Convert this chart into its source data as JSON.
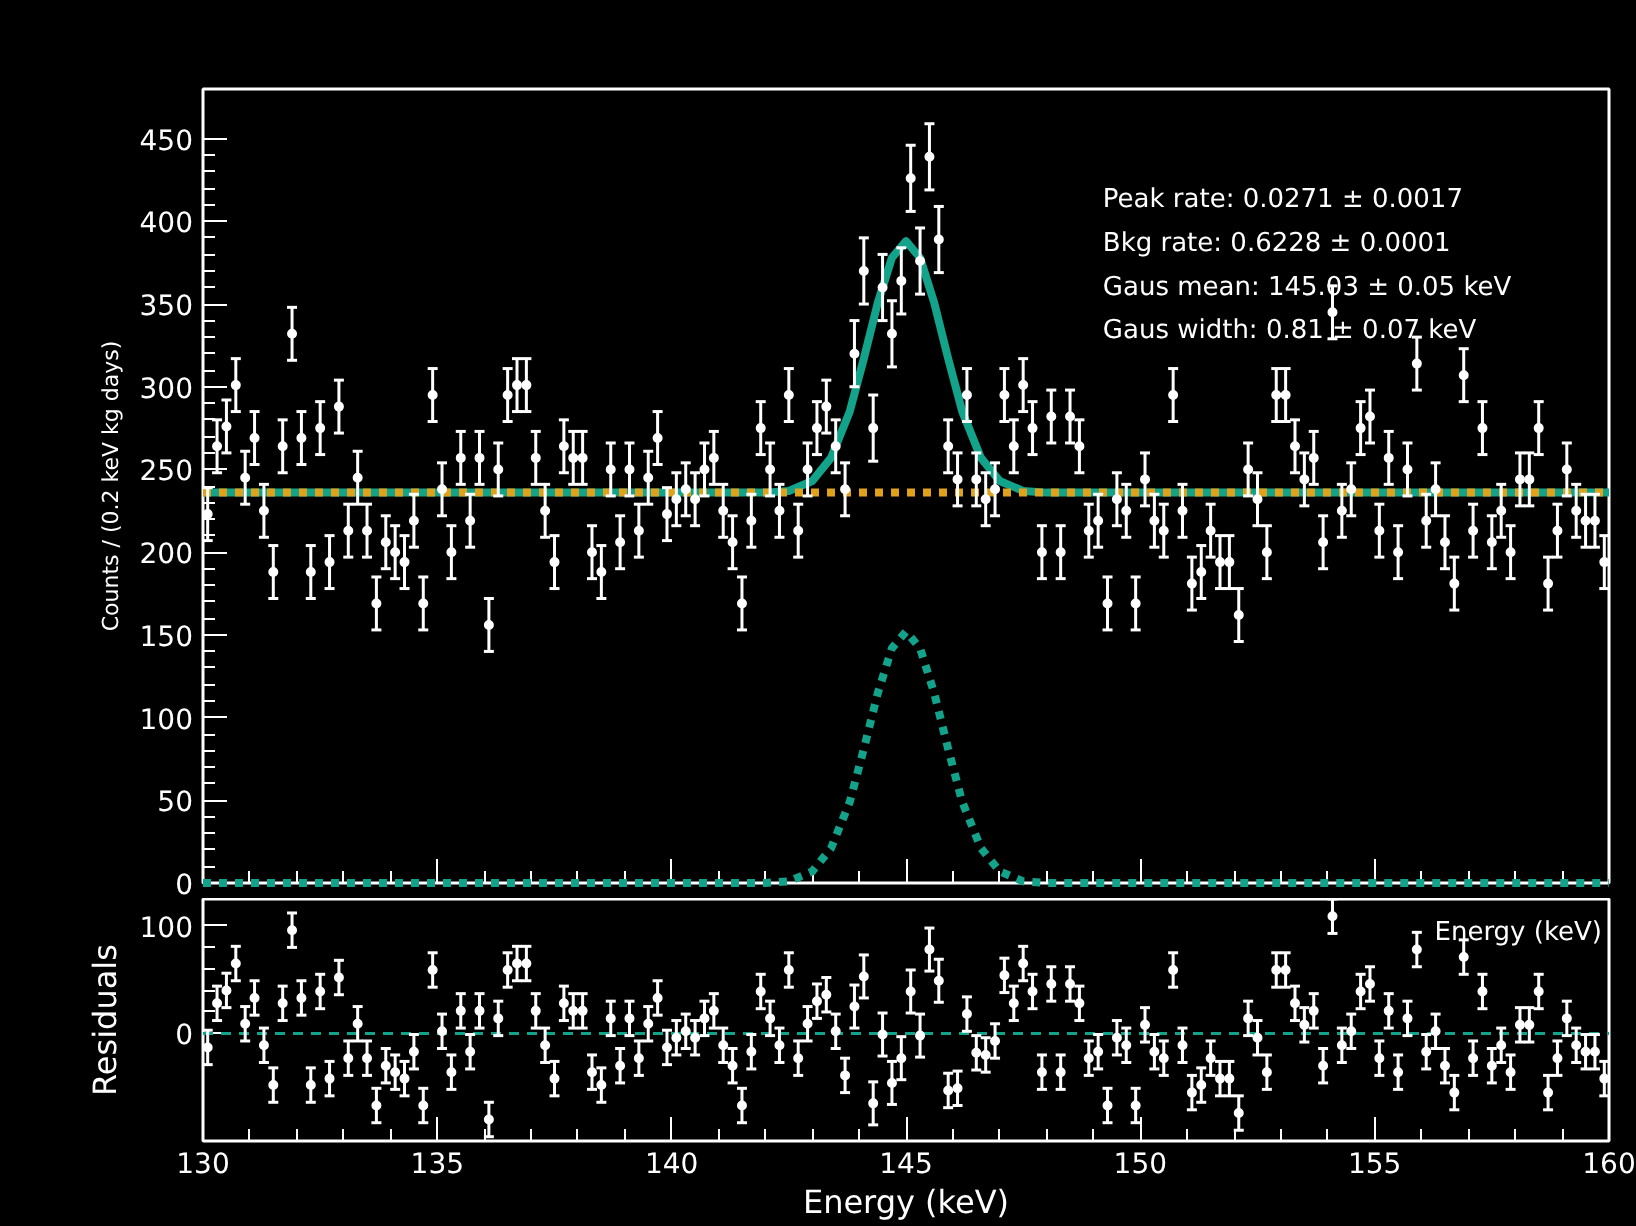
{
  "chart_data": [
    {
      "type": "scatter",
      "ylabel": "Counts / (0.2 keV kg days)",
      "xlim": [
        130,
        160
      ],
      "xticks": [
        130,
        135,
        140,
        145,
        150,
        155,
        160
      ],
      "ylim": [
        0,
        480
      ],
      "yticks": [
        0,
        50,
        100,
        150,
        200,
        250,
        300,
        350,
        400,
        450
      ],
      "tick_labels": "y",
      "annotations": [
        "Peak rate: 0.0271 ± 0.0017",
        "Bkg rate: 0.6228 ± 0.0001",
        "Gaus mean: 145.03 ± 0.05 keV",
        "Gaus width: 0.81 ± 0.07 keV"
      ],
      "x": [
        130.1,
        130.3,
        130.5,
        130.7,
        130.9,
        131.1,
        131.3,
        131.5,
        131.7,
        131.9,
        132.1,
        132.3,
        132.5,
        132.7,
        132.9,
        133.1,
        133.3,
        133.5,
        133.7,
        133.9,
        134.1,
        134.3,
        134.5,
        134.7,
        134.9,
        135.1,
        135.3,
        135.5,
        135.7,
        135.9,
        136.1,
        136.3,
        136.5,
        136.7,
        136.9,
        137.1,
        137.3,
        137.5,
        137.7,
        137.9,
        138.1,
        138.3,
        138.5,
        138.7,
        138.9,
        139.1,
        139.3,
        139.5,
        139.7,
        139.9,
        140.1,
        140.3,
        140.5,
        140.7,
        140.9,
        141.1,
        141.3,
        141.5,
        141.7,
        141.9,
        142.1,
        142.3,
        142.5,
        142.7,
        142.9,
        143.1,
        143.3,
        143.5,
        143.7,
        143.9,
        144.1,
        144.3,
        144.5,
        144.7,
        144.9,
        145.1,
        145.3,
        145.5,
        145.7,
        145.9,
        146.1,
        146.3,
        146.5,
        146.7,
        146.9,
        147.1,
        147.3,
        147.5,
        147.7,
        147.9,
        148.1,
        148.3,
        148.5,
        148.7,
        148.9,
        149.1,
        149.3,
        149.5,
        149.7,
        149.9,
        150.1,
        150.3,
        150.5,
        150.7,
        150.9,
        151.1,
        151.3,
        151.5,
        151.7,
        151.9,
        152.1,
        152.3,
        152.5,
        152.7,
        152.9,
        153.1,
        153.3,
        153.5,
        153.7,
        153.9,
        154.1,
        154.3,
        154.5,
        154.7,
        154.9,
        155.1,
        155.3,
        155.5,
        155.7,
        155.9,
        156.1,
        156.3,
        156.5,
        156.7,
        156.9,
        157.1,
        157.3,
        157.5,
        157.7,
        157.9,
        158.1,
        158.3,
        158.5,
        158.7,
        158.9,
        159.1,
        159.3,
        159.5,
        159.7,
        159.9
      ],
      "series": [
        {
          "color": "#ffffff",
          "marker": "circle",
          "values": [
            223,
            264,
            276,
            301,
            245,
            269,
            225,
            188,
            264,
            332,
            269,
            188,
            275,
            194,
            288,
            213,
            245,
            213,
            169,
            206,
            200,
            194,
            219,
            169,
            295,
            238,
            200,
            257,
            219,
            257,
            156,
            250,
            295,
            301,
            301,
            257,
            225,
            194,
            264,
            257,
            257,
            200,
            188,
            250,
            206,
            250,
            213,
            245,
            269,
            223,
            232,
            238,
            232,
            250,
            257,
            225,
            206,
            169,
            219,
            275,
            250,
            225,
            295,
            213,
            250,
            275,
            288,
            264,
            238,
            320,
            370,
            275,
            360,
            332,
            364,
            426,
            376,
            439,
            389,
            264,
            244,
            295,
            244,
            232,
            238,
            295,
            264,
            301,
            275,
            200,
            282,
            200,
            282,
            264,
            213,
            219,
            169,
            232,
            225,
            169,
            244,
            219,
            213,
            295,
            225,
            181,
            188,
            213,
            194,
            194,
            162,
            250,
            232,
            200,
            295,
            295,
            264,
            244,
            257,
            206,
            345,
            225,
            238,
            275,
            282,
            213,
            257,
            200,
            250,
            314,
            219,
            238,
            206,
            181,
            307,
            213,
            275,
            206,
            225,
            200,
            244,
            244,
            275,
            181,
            213,
            250,
            225,
            219,
            219,
            194
          ],
          "errors": [
            16,
            16,
            16,
            16,
            16,
            16,
            16,
            16,
            16,
            16,
            16,
            16,
            16,
            16,
            16,
            16,
            16,
            16,
            16,
            16,
            16,
            16,
            16,
            16,
            16,
            16,
            16,
            16,
            16,
            16,
            16,
            16,
            16,
            16,
            16,
            16,
            16,
            16,
            16,
            16,
            16,
            16,
            16,
            16,
            16,
            16,
            16,
            16,
            16,
            16,
            16,
            16,
            16,
            16,
            16,
            16,
            16,
            16,
            16,
            16,
            16,
            16,
            16,
            16,
            16,
            16,
            16,
            16,
            16,
            20,
            20,
            20,
            20,
            20,
            20,
            20,
            20,
            20,
            20,
            16,
            16,
            16,
            16,
            16,
            16,
            16,
            16,
            16,
            16,
            16,
            16,
            16,
            16,
            16,
            16,
            16,
            16,
            16,
            16,
            16,
            16,
            16,
            16,
            16,
            16,
            16,
            16,
            16,
            16,
            16,
            16,
            16,
            16,
            16,
            16,
            16,
            16,
            16,
            16,
            16,
            16,
            16,
            16,
            16,
            16,
            16,
            16,
            16,
            16,
            16,
            16,
            16,
            16,
            16,
            16,
            16,
            16,
            16,
            16,
            16,
            16,
            16,
            16,
            16,
            16,
            16,
            16,
            16,
            16,
            16
          ]
        },
        {
          "type": "line",
          "color": "#12a38a",
          "line_style": "dotted",
          "x": [
            130,
            142,
            142.5,
            143,
            143.4,
            143.8,
            144.1,
            144.4,
            144.7,
            145,
            145.3,
            145.6,
            145.9,
            146.2,
            146.6,
            147,
            147.5,
            148,
            160
          ],
          "values": [
            0,
            0,
            1,
            7,
            21,
            49,
            81,
            115,
            142,
            152,
            142,
            115,
            81,
            49,
            21,
            7,
            1,
            0,
            0
          ]
        },
        {
          "type": "line",
          "color": "#12a38a",
          "line_style": "solid",
          "x": [
            130,
            142,
            142.5,
            143,
            143.4,
            143.8,
            144.1,
            144.4,
            144.7,
            145,
            145.3,
            145.6,
            145.9,
            146.2,
            146.6,
            147,
            147.5,
            148,
            160
          ],
          "values": [
            236,
            236,
            237,
            243,
            257,
            285,
            317,
            351,
            378,
            388,
            378,
            351,
            317,
            285,
            257,
            243,
            237,
            236,
            236
          ]
        },
        {
          "type": "line",
          "color": "#e0a21c",
          "line_style": "dotted",
          "x": [
            130,
            160
          ],
          "values": [
            236,
            236
          ]
        }
      ]
    },
    {
      "type": "scatter",
      "ylabel": "Residuals",
      "xlabel": "Energy (keV)",
      "xlim": [
        130,
        160
      ],
      "xticks": [
        130,
        135,
        140,
        145,
        150,
        155,
        160
      ],
      "ylim": [
        -100,
        125
      ],
      "yticks": [
        0,
        100
      ],
      "marker": "circle",
      "annotations": [
        "Energy (keV)"
      ],
      "ref_lines": [
        {
          "axis": "y",
          "value": 0,
          "color": "#12a38a",
          "line_style": "dashed"
        }
      ],
      "x": [
        130.1,
        130.3,
        130.5,
        130.7,
        130.9,
        131.1,
        131.3,
        131.5,
        131.7,
        131.9,
        132.1,
        132.3,
        132.5,
        132.7,
        132.9,
        133.1,
        133.3,
        133.5,
        133.7,
        133.9,
        134.1,
        134.3,
        134.5,
        134.7,
        134.9,
        135.1,
        135.3,
        135.5,
        135.7,
        135.9,
        136.1,
        136.3,
        136.5,
        136.7,
        136.9,
        137.1,
        137.3,
        137.5,
        137.7,
        137.9,
        138.1,
        138.3,
        138.5,
        138.7,
        138.9,
        139.1,
        139.3,
        139.5,
        139.7,
        139.9,
        140.1,
        140.3,
        140.5,
        140.7,
        140.9,
        141.1,
        141.3,
        141.5,
        141.7,
        141.9,
        142.1,
        142.3,
        142.5,
        142.7,
        142.9,
        143.1,
        143.3,
        143.5,
        143.7,
        143.9,
        144.1,
        144.3,
        144.5,
        144.7,
        144.9,
        145.1,
        145.3,
        145.5,
        145.7,
        145.9,
        146.1,
        146.3,
        146.5,
        146.7,
        146.9,
        147.1,
        147.3,
        147.5,
        147.7,
        147.9,
        148.1,
        148.3,
        148.5,
        148.7,
        148.9,
        149.1,
        149.3,
        149.5,
        149.7,
        149.9,
        150.1,
        150.3,
        150.5,
        150.7,
        150.9,
        151.1,
        151.3,
        151.5,
        151.7,
        151.9,
        152.1,
        152.3,
        152.5,
        152.7,
        152.9,
        153.1,
        153.3,
        153.5,
        153.7,
        153.9,
        154.1,
        154.3,
        154.5,
        154.7,
        154.9,
        155.1,
        155.3,
        155.5,
        155.7,
        155.9,
        156.1,
        156.3,
        156.5,
        156.7,
        156.9,
        157.1,
        157.3,
        157.5,
        157.7,
        157.9,
        158.1,
        158.3,
        158.5,
        158.7,
        158.9,
        159.1,
        159.3,
        159.5,
        159.7,
        159.9
      ],
      "series": [
        {
          "color": "#ffffff",
          "values": [
            -13,
            28,
            40,
            65,
            9,
            33,
            -11,
            -48,
            28,
            96,
            33,
            -48,
            39,
            -42,
            52,
            -23,
            9,
            -23,
            -67,
            -30,
            -36,
            -42,
            -17,
            -67,
            59,
            2,
            -36,
            21,
            -17,
            21,
            -80,
            14,
            59,
            65,
            65,
            21,
            -11,
            -42,
            28,
            21,
            21,
            -36,
            -48,
            14,
            -30,
            14,
            -23,
            9,
            33,
            -13,
            -4,
            2,
            -4,
            14,
            21,
            -11,
            -30,
            -67,
            -17,
            39,
            14,
            -11,
            59,
            -23,
            9,
            30,
            36,
            2,
            -39,
            25,
            53,
            -65,
            -1,
            -46,
            -23,
            39,
            -2,
            78,
            49,
            -53,
            -51,
            18,
            -18,
            -20,
            -7,
            54,
            28,
            65,
            39,
            -36,
            46,
            -36,
            46,
            28,
            -23,
            -17,
            -67,
            -4,
            -11,
            -67,
            8,
            -17,
            -23,
            59,
            -11,
            -55,
            -48,
            -23,
            -42,
            -42,
            -74,
            14,
            -4,
            -36,
            59,
            59,
            28,
            8,
            21,
            -30,
            109,
            -11,
            2,
            39,
            46,
            -23,
            21,
            -36,
            14,
            78,
            -17,
            2,
            -30,
            -55,
            71,
            -23,
            39,
            -30,
            -11,
            -36,
            8,
            8,
            39,
            -55,
            -23,
            14,
            -11,
            -17,
            -17,
            -42
          ],
          "errors": [
            16,
            16,
            16,
            16,
            16,
            16,
            16,
            16,
            16,
            16,
            16,
            16,
            16,
            16,
            16,
            16,
            16,
            16,
            16,
            16,
            16,
            16,
            16,
            16,
            16,
            16,
            16,
            16,
            16,
            16,
            16,
            16,
            16,
            16,
            16,
            16,
            16,
            16,
            16,
            16,
            16,
            16,
            16,
            16,
            16,
            16,
            16,
            16,
            16,
            16,
            16,
            16,
            16,
            16,
            16,
            16,
            16,
            16,
            16,
            16,
            16,
            16,
            16,
            16,
            16,
            16,
            16,
            16,
            16,
            20,
            20,
            20,
            20,
            20,
            20,
            20,
            20,
            20,
            20,
            16,
            16,
            16,
            16,
            16,
            16,
            16,
            16,
            16,
            16,
            16,
            16,
            16,
            16,
            16,
            16,
            16,
            16,
            16,
            16,
            16,
            16,
            16,
            16,
            16,
            16,
            16,
            16,
            16,
            16,
            16,
            16,
            16,
            16,
            16,
            16,
            16,
            16,
            16,
            16,
            16,
            16,
            16,
            16,
            16,
            16,
            16,
            16,
            16,
            16,
            16,
            16,
            16,
            16,
            16,
            16,
            16,
            16,
            16,
            16,
            16,
            16,
            16,
            16,
            16,
            16,
            16,
            16,
            16,
            16,
            16
          ]
        }
      ]
    }
  ]
}
